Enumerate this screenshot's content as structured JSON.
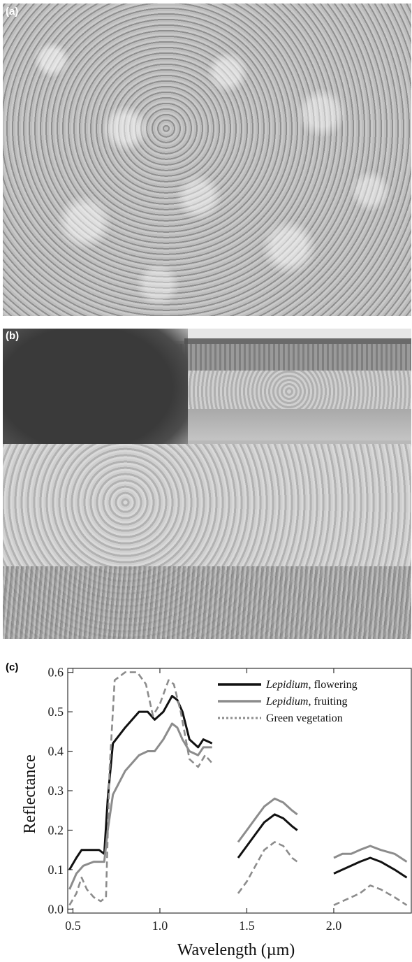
{
  "panels": {
    "a_label": "(a)",
    "b_label": "(b)",
    "c_label": "(c)"
  },
  "chart_data": {
    "type": "line",
    "xlabel": "Wavelength (µm)",
    "ylabel": "Reflectance",
    "xlim": [
      0.47,
      2.45
    ],
    "ylim": [
      -0.01,
      0.61
    ],
    "xticks": [
      "0.5",
      "1.0",
      "1.5",
      "2.0"
    ],
    "xtick_values": [
      0.5,
      1.0,
      1.5,
      2.0
    ],
    "yticks": [
      "0.0",
      "0.1",
      "0.2",
      "0.3",
      "0.4",
      "0.5",
      "0.6"
    ],
    "ytick_values": [
      0.0,
      0.1,
      0.2,
      0.3,
      0.4,
      0.5,
      0.6
    ],
    "legend_position": "top-right",
    "series": [
      {
        "name_prefix": "Lepidium",
        "name_suffix": ", flowering",
        "color": "#111111",
        "style": "solid",
        "segments": [
          [
            [
              0.48,
              0.1
            ],
            [
              0.52,
              0.13
            ],
            [
              0.55,
              0.15
            ],
            [
              0.6,
              0.15
            ],
            [
              0.65,
              0.15
            ],
            [
              0.68,
              0.14
            ],
            [
              0.7,
              0.28
            ],
            [
              0.73,
              0.42
            ],
            [
              0.8,
              0.46
            ],
            [
              0.88,
              0.5
            ],
            [
              0.93,
              0.5
            ],
            [
              0.97,
              0.48
            ],
            [
              1.02,
              0.5
            ],
            [
              1.07,
              0.54
            ],
            [
              1.1,
              0.53
            ],
            [
              1.13,
              0.5
            ],
            [
              1.17,
              0.43
            ],
            [
              1.22,
              0.41
            ],
            [
              1.25,
              0.43
            ],
            [
              1.3,
              0.42
            ]
          ],
          [
            [
              1.45,
              0.13
            ],
            [
              1.5,
              0.16
            ],
            [
              1.55,
              0.19
            ],
            [
              1.6,
              0.22
            ],
            [
              1.66,
              0.24
            ],
            [
              1.71,
              0.23
            ],
            [
              1.76,
              0.21
            ],
            [
              1.79,
              0.2
            ]
          ],
          [
            [
              2.0,
              0.09
            ],
            [
              2.05,
              0.1
            ],
            [
              2.1,
              0.11
            ],
            [
              2.15,
              0.12
            ],
            [
              2.21,
              0.13
            ],
            [
              2.27,
              0.12
            ],
            [
              2.35,
              0.1
            ],
            [
              2.42,
              0.08
            ]
          ]
        ]
      },
      {
        "name_prefix": "Lepidium",
        "name_suffix": ", fruiting",
        "color": "#8c8c8c",
        "style": "solid",
        "segments": [
          [
            [
              0.48,
              0.05
            ],
            [
              0.52,
              0.09
            ],
            [
              0.56,
              0.11
            ],
            [
              0.62,
              0.12
            ],
            [
              0.68,
              0.12
            ],
            [
              0.7,
              0.2
            ],
            [
              0.73,
              0.29
            ],
            [
              0.8,
              0.35
            ],
            [
              0.88,
              0.39
            ],
            [
              0.93,
              0.4
            ],
            [
              0.97,
              0.4
            ],
            [
              1.02,
              0.43
            ],
            [
              1.07,
              0.47
            ],
            [
              1.1,
              0.46
            ],
            [
              1.13,
              0.43
            ],
            [
              1.17,
              0.4
            ],
            [
              1.22,
              0.39
            ],
            [
              1.25,
              0.41
            ],
            [
              1.3,
              0.41
            ]
          ],
          [
            [
              1.45,
              0.17
            ],
            [
              1.5,
              0.2
            ],
            [
              1.55,
              0.23
            ],
            [
              1.6,
              0.26
            ],
            [
              1.66,
              0.28
            ],
            [
              1.71,
              0.27
            ],
            [
              1.76,
              0.25
            ],
            [
              1.79,
              0.24
            ]
          ],
          [
            [
              2.0,
              0.13
            ],
            [
              2.05,
              0.14
            ],
            [
              2.1,
              0.14
            ],
            [
              2.15,
              0.15
            ],
            [
              2.21,
              0.16
            ],
            [
              2.27,
              0.15
            ],
            [
              2.35,
              0.14
            ],
            [
              2.42,
              0.12
            ]
          ]
        ]
      },
      {
        "name_prefix": "",
        "name_suffix": "Green vegetation",
        "color": "#8c8c8c",
        "style": "dashed",
        "segments": [
          [
            [
              0.48,
              0.01
            ],
            [
              0.52,
              0.04
            ],
            [
              0.55,
              0.08
            ],
            [
              0.58,
              0.05
            ],
            [
              0.62,
              0.03
            ],
            [
              0.66,
              0.02
            ],
            [
              0.69,
              0.03
            ],
            [
              0.71,
              0.35
            ],
            [
              0.74,
              0.58
            ],
            [
              0.8,
              0.6
            ],
            [
              0.87,
              0.6
            ],
            [
              0.92,
              0.57
            ],
            [
              0.96,
              0.49
            ],
            [
              1.0,
              0.52
            ],
            [
              1.05,
              0.58
            ],
            [
              1.08,
              0.57
            ],
            [
              1.12,
              0.5
            ],
            [
              1.17,
              0.38
            ],
            [
              1.22,
              0.36
            ],
            [
              1.26,
              0.39
            ],
            [
              1.3,
              0.37
            ]
          ],
          [
            [
              1.45,
              0.04
            ],
            [
              1.5,
              0.07
            ],
            [
              1.55,
              0.11
            ],
            [
              1.6,
              0.15
            ],
            [
              1.66,
              0.17
            ],
            [
              1.71,
              0.16
            ],
            [
              1.76,
              0.13
            ],
            [
              1.79,
              0.12
            ]
          ],
          [
            [
              2.0,
              0.01
            ],
            [
              2.05,
              0.02
            ],
            [
              2.1,
              0.03
            ],
            [
              2.15,
              0.04
            ],
            [
              2.21,
              0.06
            ],
            [
              2.27,
              0.05
            ],
            [
              2.35,
              0.03
            ],
            [
              2.42,
              0.01
            ]
          ]
        ]
      }
    ]
  }
}
